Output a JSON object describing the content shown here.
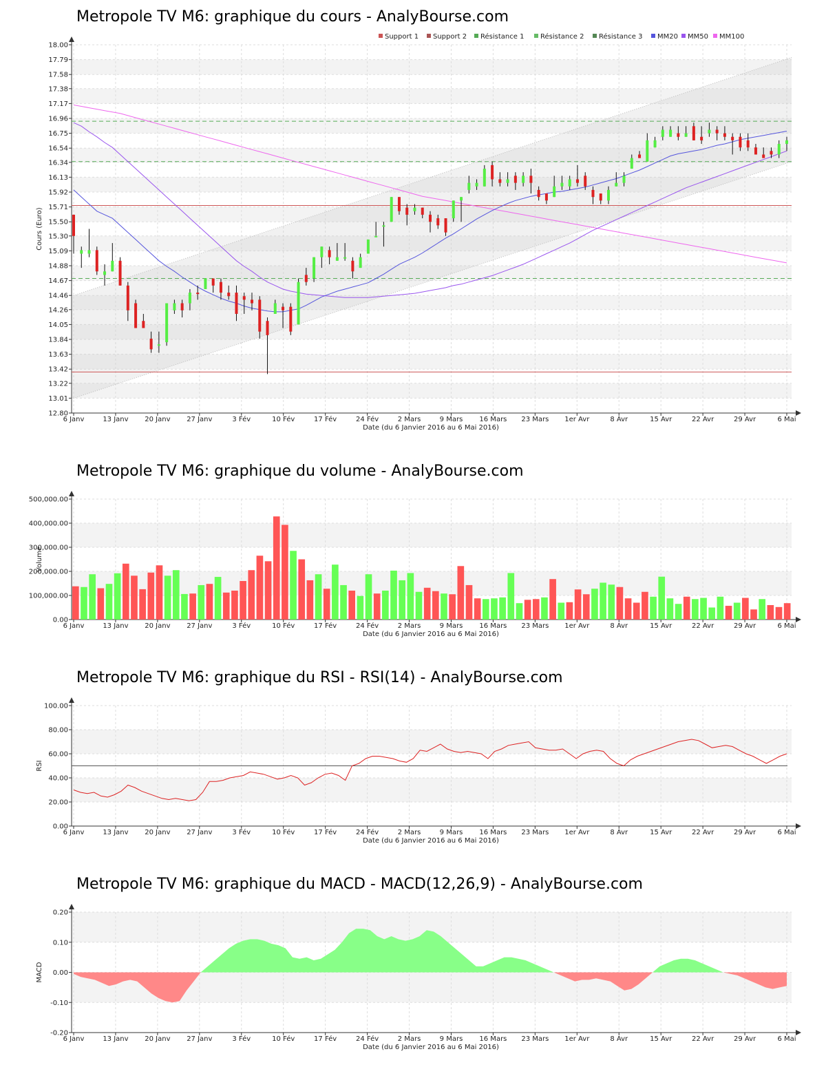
{
  "x_axis": {
    "ticks": [
      "6 Janv",
      "13 Janv",
      "20 Janv",
      "27 Janv",
      "3 Fév",
      "10 Fév",
      "17 Fév",
      "24 Fév",
      "2 Mars",
      "9 Mars",
      "16 Mars",
      "23 Mars",
      "1er Avr",
      "8 Avr",
      "15 Avr",
      "22 Avr",
      "29 Avr",
      "6 Mai"
    ],
    "label": "Date (du 6 Janvier 2016 au 6 Mai 2016)"
  },
  "colors": {
    "up": "#55ee44",
    "down": "#dd2222",
    "vol_up": "#66ff55",
    "vol_down": "#ff5555",
    "mm20": "#5555dd",
    "mm50": "#9955ee",
    "mm100": "#ee66ee",
    "support": "#cc5555",
    "resistance": "#55aa55",
    "rsi": "#dd2222",
    "macd_pos": "#88ff88",
    "macd_neg": "#ff8888"
  },
  "chart_data": [
    {
      "type": "candlestick",
      "title": "Metropole TV M6: graphique du cours - AnalyBourse.com",
      "ylabel": "Cours (Euro)",
      "xlabel": "Date (du 6 Janvier 2016 au 6 Mai 2016)",
      "ylim": [
        12.8,
        18.0
      ],
      "y_ticks": [
        "12.80",
        "13.01",
        "13.22",
        "13.42",
        "13.63",
        "13.84",
        "14.05",
        "14.26",
        "14.46",
        "14.67",
        "14.88",
        "15.09",
        "15.30",
        "15.50",
        "15.71",
        "15.92",
        "16.13",
        "16.34",
        "16.54",
        "16.75",
        "16.96",
        "17.17",
        "17.38",
        "17.58",
        "17.79",
        "18.00"
      ],
      "legend": [
        "Support 1",
        "Support 2",
        "Résistance 1",
        "Résistance 2",
        "Résistance 3",
        "MM20",
        "MM50",
        "MM100"
      ],
      "legend_position": "top-right",
      "levels": {
        "support1": 15.73,
        "support2": 13.38,
        "resistance1": 14.7,
        "resistance2": 16.35,
        "resistance3": 16.92
      },
      "candles": [
        [
          15.6,
          15.3,
          15.6,
          15.05
        ],
        [
          15.05,
          15.1,
          15.15,
          14.85
        ],
        [
          15.05,
          15.1,
          15.4,
          15.0
        ],
        [
          15.1,
          14.8,
          15.15,
          14.75
        ],
        [
          14.75,
          14.8,
          14.9,
          14.6
        ],
        [
          14.8,
          14.95,
          15.2,
          14.8
        ],
        [
          14.95,
          14.6,
          15.0,
          14.6
        ],
        [
          14.6,
          14.25,
          14.65,
          14.1
        ],
        [
          14.35,
          14.0,
          14.4,
          14.0
        ],
        [
          14.1,
          14.0,
          14.2,
          14.0
        ],
        [
          13.85,
          13.7,
          13.95,
          13.65
        ],
        [
          13.75,
          13.77,
          13.95,
          13.65
        ],
        [
          13.8,
          14.35,
          14.35,
          13.75
        ],
        [
          14.25,
          14.35,
          14.4,
          14.2
        ],
        [
          14.35,
          14.25,
          14.4,
          14.15
        ],
        [
          14.35,
          14.5,
          14.55,
          14.25
        ],
        [
          14.5,
          14.48,
          14.6,
          14.4
        ],
        [
          14.55,
          14.7,
          14.7,
          14.55
        ],
        [
          14.7,
          14.6,
          14.7,
          14.5
        ],
        [
          14.65,
          14.5,
          14.7,
          14.4
        ],
        [
          14.5,
          14.45,
          14.6,
          14.4
        ],
        [
          14.5,
          14.2,
          14.6,
          14.1
        ],
        [
          14.45,
          14.4,
          14.5,
          14.2
        ],
        [
          14.4,
          14.35,
          14.5,
          14.25
        ],
        [
          14.4,
          13.95,
          14.45,
          13.85
        ],
        [
          14.1,
          13.9,
          14.15,
          13.35
        ],
        [
          14.2,
          14.35,
          14.4,
          14.2
        ],
        [
          14.3,
          14.25,
          14.35,
          14.0
        ],
        [
          14.3,
          13.95,
          14.35,
          13.9
        ],
        [
          14.05,
          14.65,
          14.7,
          14.05
        ],
        [
          14.75,
          14.65,
          14.85,
          14.6
        ],
        [
          14.7,
          15.0,
          15.0,
          14.65
        ],
        [
          15.0,
          15.15,
          15.15,
          14.85
        ],
        [
          15.1,
          15.0,
          15.15,
          14.9
        ],
        [
          14.95,
          15.0,
          15.2,
          14.95
        ],
        [
          15.0,
          15.0,
          15.2,
          14.95
        ],
        [
          14.95,
          14.8,
          15.0,
          14.7
        ],
        [
          14.85,
          15.0,
          15.05,
          14.85
        ],
        [
          15.05,
          15.25,
          15.25,
          15.05
        ],
        [
          15.3,
          15.3,
          15.5,
          15.3
        ],
        [
          15.45,
          15.45,
          15.5,
          15.15
        ],
        [
          15.5,
          15.85,
          15.85,
          15.5
        ],
        [
          15.85,
          15.65,
          15.85,
          15.6
        ],
        [
          15.7,
          15.6,
          15.75,
          15.45
        ],
        [
          15.65,
          15.7,
          15.75,
          15.6
        ],
        [
          15.7,
          15.6,
          15.7,
          15.55
        ],
        [
          15.6,
          15.5,
          15.65,
          15.35
        ],
        [
          15.55,
          15.45,
          15.6,
          15.4
        ],
        [
          15.55,
          15.35,
          15.55,
          15.3
        ],
        [
          15.55,
          15.8,
          15.8,
          15.5
        ],
        [
          15.8,
          15.85,
          15.85,
          15.5
        ],
        [
          15.95,
          16.05,
          16.15,
          15.9
        ],
        [
          16.0,
          16.05,
          16.1,
          15.95
        ],
        [
          16.0,
          16.25,
          16.3,
          16.0
        ],
        [
          16.3,
          16.1,
          16.35,
          16.0
        ],
        [
          16.1,
          16.05,
          16.2,
          16.0
        ],
        [
          16.05,
          16.1,
          16.2,
          16.0
        ],
        [
          16.15,
          16.05,
          16.2,
          15.95
        ],
        [
          16.05,
          16.15,
          16.2,
          16.0
        ],
        [
          16.15,
          16.05,
          16.25,
          15.9
        ],
        [
          15.95,
          15.85,
          16.0,
          15.8
        ],
        [
          15.9,
          15.8,
          15.9,
          15.75
        ],
        [
          15.85,
          16.0,
          16.15,
          15.85
        ],
        [
          16.0,
          16.05,
          16.15,
          15.95
        ],
        [
          16.0,
          16.1,
          16.15,
          15.95
        ],
        [
          16.1,
          16.05,
          16.3,
          16.0
        ],
        [
          16.15,
          16.0,
          16.2,
          15.95
        ],
        [
          15.95,
          15.85,
          16.0,
          15.75
        ],
        [
          15.9,
          15.8,
          15.9,
          15.75
        ],
        [
          15.8,
          15.95,
          16.0,
          15.75
        ],
        [
          16.0,
          16.05,
          16.2,
          16.0
        ],
        [
          16.05,
          16.15,
          16.2,
          16.0
        ],
        [
          16.25,
          16.4,
          16.45,
          16.25
        ],
        [
          16.45,
          16.4,
          16.5,
          16.4
        ],
        [
          16.35,
          16.65,
          16.75,
          16.35
        ],
        [
          16.55,
          16.65,
          16.7,
          16.55
        ],
        [
          16.7,
          16.8,
          16.85,
          16.65
        ],
        [
          16.7,
          16.8,
          16.85,
          16.7
        ],
        [
          16.75,
          16.7,
          16.85,
          16.65
        ],
        [
          16.7,
          16.75,
          16.85,
          16.7
        ],
        [
          16.85,
          16.65,
          16.9,
          16.65
        ],
        [
          16.7,
          16.65,
          16.85,
          16.6
        ],
        [
          16.75,
          16.8,
          16.9,
          16.7
        ],
        [
          16.8,
          16.75,
          16.85,
          16.65
        ],
        [
          16.75,
          16.7,
          16.85,
          16.65
        ],
        [
          16.7,
          16.65,
          16.75,
          16.45
        ],
        [
          16.7,
          16.55,
          16.75,
          16.5
        ],
        [
          16.65,
          16.55,
          16.75,
          16.5
        ],
        [
          16.55,
          16.45,
          16.6,
          16.45
        ],
        [
          16.45,
          16.4,
          16.55,
          16.4
        ],
        [
          16.5,
          16.45,
          16.55,
          16.4
        ],
        [
          16.45,
          16.6,
          16.65,
          16.4
        ],
        [
          16.6,
          16.65,
          16.7,
          16.5
        ]
      ],
      "mm20": [
        15.95,
        15.85,
        15.75,
        15.65,
        15.6,
        15.55,
        15.45,
        15.35,
        15.25,
        15.15,
        15.05,
        14.95,
        14.87,
        14.8,
        14.72,
        14.65,
        14.58,
        14.52,
        14.47,
        14.42,
        14.38,
        14.35,
        14.31,
        14.28,
        14.26,
        14.24,
        14.23,
        14.23,
        14.25,
        14.27,
        14.32,
        14.38,
        14.44,
        14.48,
        14.52,
        14.55,
        14.58,
        14.61,
        14.64,
        14.7,
        14.76,
        14.83,
        14.9,
        14.95,
        15.0,
        15.06,
        15.13,
        15.2,
        15.27,
        15.33,
        15.4,
        15.47,
        15.54,
        15.6,
        15.66,
        15.71,
        15.76,
        15.8,
        15.83,
        15.86,
        15.88,
        15.9,
        15.92,
        15.93,
        15.95,
        15.97,
        15.99,
        16.02,
        16.05,
        16.08,
        16.11,
        16.15,
        16.19,
        16.23,
        16.28,
        16.33,
        16.38,
        16.43,
        16.46,
        16.48,
        16.5,
        16.52,
        16.55,
        16.58,
        16.6,
        16.63,
        16.66,
        16.68,
        16.7,
        16.72,
        16.74,
        16.76,
        16.78
      ],
      "mm50": [
        16.9,
        16.85,
        16.77,
        16.7,
        16.62,
        16.55,
        16.45,
        16.35,
        16.25,
        16.15,
        16.05,
        15.95,
        15.85,
        15.75,
        15.65,
        15.55,
        15.45,
        15.35,
        15.25,
        15.15,
        15.05,
        14.95,
        14.87,
        14.8,
        14.72,
        14.65,
        14.6,
        14.55,
        14.52,
        14.5,
        14.48,
        14.47,
        14.46,
        14.45,
        14.44,
        14.43,
        14.43,
        14.43,
        14.43,
        14.44,
        14.45,
        14.46,
        14.47,
        14.48,
        14.49,
        14.51,
        14.53,
        14.55,
        14.57,
        14.6,
        14.62,
        14.65,
        14.68,
        14.71,
        14.74,
        14.78,
        14.82,
        14.86,
        14.9,
        14.95,
        15.0,
        15.05,
        15.1,
        15.15,
        15.2,
        15.26,
        15.32,
        15.38,
        15.43,
        15.48,
        15.53,
        15.58,
        15.63,
        15.68,
        15.73,
        15.78,
        15.83,
        15.88,
        15.93,
        15.98,
        16.02,
        16.06,
        16.1,
        16.14,
        16.18,
        16.22,
        16.26,
        16.3,
        16.34,
        16.38,
        16.42,
        16.46,
        16.5
      ],
      "mm100": [
        17.15,
        17.13,
        17.11,
        17.09,
        17.07,
        17.05,
        17.03,
        17.0,
        16.97,
        16.94,
        16.91,
        16.88,
        16.85,
        16.82,
        16.79,
        16.76,
        16.73,
        16.7,
        16.67,
        16.64,
        16.61,
        16.58,
        16.55,
        16.52,
        16.49,
        16.46,
        16.43,
        16.4,
        16.37,
        16.34,
        16.31,
        16.28,
        16.25,
        16.22,
        16.19,
        16.16,
        16.13,
        16.1,
        16.07,
        16.04,
        16.01,
        15.98,
        15.95,
        15.92,
        15.89,
        15.86,
        15.84,
        15.82,
        15.8,
        15.78,
        15.76,
        15.74,
        15.72,
        15.7,
        15.68,
        15.66,
        15.64,
        15.62,
        15.6,
        15.58,
        15.56,
        15.54,
        15.52,
        15.5,
        15.48,
        15.46,
        15.44,
        15.42,
        15.4,
        15.38,
        15.36,
        15.34,
        15.32,
        15.3,
        15.28,
        15.26,
        15.24,
        15.22,
        15.2,
        15.18,
        15.16,
        15.14,
        15.12,
        15.1,
        15.08,
        15.06,
        15.04,
        15.02,
        15.0,
        14.98,
        14.96,
        14.94,
        14.92
      ],
      "channel": {
        "upper": [
          14.45,
          17.82
        ],
        "lower": [
          13.0,
          16.35
        ],
        "fill": [
          14.45,
          17.82,
          16.35,
          13.0
        ]
      }
    },
    {
      "type": "bar",
      "title": "Metropole TV M6: graphique du volume - AnalyBourse.com",
      "ylabel": "Volume",
      "xlabel": "Date (du 6 Janvier 2016 au 6 Mai 2016)",
      "ylim": [
        0,
        500000
      ],
      "y_ticks": [
        "0.00",
        "100,000.00",
        "200,000.00",
        "300,000.00",
        "400,000.00",
        "500,000.00"
      ],
      "values": [
        138000,
        135000,
        188000,
        130000,
        148000,
        192000,
        232000,
        182000,
        126000,
        195000,
        225000,
        182000,
        205000,
        106000,
        108000,
        143000,
        148000,
        177000,
        112000,
        120000,
        160000,
        205000,
        265000,
        242000,
        428000,
        393000,
        285000,
        250000,
        163000,
        188000,
        128000,
        228000,
        143000,
        120000,
        98000,
        188000,
        108000,
        120000,
        203000,
        163000,
        193000,
        115000,
        132000,
        118000,
        108000,
        105000,
        222000,
        143000,
        88000,
        85000,
        88000,
        92000,
        193000,
        68000,
        82000,
        85000,
        92000,
        168000,
        70000,
        72000,
        125000,
        105000,
        128000,
        153000,
        145000,
        135000,
        88000,
        70000,
        115000,
        95000,
        178000,
        88000,
        65000,
        95000,
        85000,
        90000,
        50000,
        95000,
        57000,
        70000,
        90000,
        42000,
        85000,
        60000,
        52000,
        68000
      ]
    },
    {
      "type": "line",
      "title": "Metropole TV M6: graphique du RSI - RSI(14) - AnalyBourse.com",
      "ylabel": "RSI",
      "xlabel": "Date (du 6 Janvier 2016 au 6 Mai 2016)",
      "ylim": [
        0,
        100
      ],
      "y_ticks": [
        "0.00",
        "20.00",
        "40.00",
        "60.00",
        "80.00",
        "100.00"
      ],
      "reference_line": 50,
      "values": [
        30,
        28,
        27,
        28,
        25,
        24,
        26,
        29,
        34,
        32,
        29,
        27,
        25,
        23,
        22,
        23,
        22,
        21,
        22,
        28,
        37,
        37,
        38,
        40,
        41,
        42,
        45,
        44,
        43,
        41,
        39,
        40,
        42,
        40,
        34,
        36,
        40,
        43,
        44,
        42,
        38,
        50,
        52,
        56,
        58,
        58,
        57,
        56,
        54,
        53,
        56,
        63,
        62,
        65,
        68,
        64,
        62,
        61,
        62,
        61,
        60,
        56,
        62,
        64,
        67,
        68,
        69,
        70,
        65,
        64,
        63,
        63,
        64,
        60,
        56,
        60,
        62,
        63,
        62,
        56,
        52,
        50,
        55,
        58,
        60,
        62,
        64,
        66,
        68,
        70,
        71,
        72,
        71,
        68,
        65,
        66,
        67,
        66,
        63,
        60,
        58,
        55,
        52,
        55,
        58,
        60
      ]
    },
    {
      "type": "area",
      "title": "Metropole TV M6: graphique du MACD - MACD(12,26,9) - AnalyBourse.com",
      "ylabel": "MACD",
      "xlabel": "Date (du 6 Janvier 2016 au 6 Mai 2016)",
      "ylim": [
        -0.2,
        0.2
      ],
      "y_ticks": [
        "-0.20",
        "-0.10",
        "0.00",
        "0.10",
        "0.20"
      ],
      "values": [
        -0.005,
        -0.015,
        -0.02,
        -0.025,
        -0.035,
        -0.045,
        -0.04,
        -0.03,
        -0.025,
        -0.03,
        -0.05,
        -0.07,
        -0.085,
        -0.095,
        -0.1,
        -0.095,
        -0.06,
        -0.03,
        0.0,
        0.02,
        0.04,
        0.06,
        0.08,
        0.095,
        0.105,
        0.11,
        0.11,
        0.105,
        0.095,
        0.09,
        0.08,
        0.05,
        0.045,
        0.05,
        0.04,
        0.045,
        0.06,
        0.075,
        0.1,
        0.13,
        0.145,
        0.145,
        0.14,
        0.12,
        0.11,
        0.12,
        0.11,
        0.105,
        0.11,
        0.12,
        0.14,
        0.135,
        0.12,
        0.1,
        0.08,
        0.06,
        0.04,
        0.02,
        0.02,
        0.03,
        0.04,
        0.05,
        0.05,
        0.045,
        0.04,
        0.03,
        0.02,
        0.01,
        0.0,
        -0.01,
        -0.02,
        -0.03,
        -0.025,
        -0.025,
        -0.02,
        -0.025,
        -0.03,
        -0.045,
        -0.06,
        -0.055,
        -0.04,
        -0.02,
        0.0,
        0.02,
        0.03,
        0.04,
        0.045,
        0.045,
        0.04,
        0.03,
        0.02,
        0.01,
        0.0,
        -0.005,
        -0.01,
        -0.02,
        -0.03,
        -0.04,
        -0.05,
        -0.055,
        -0.05,
        -0.045
      ]
    }
  ]
}
